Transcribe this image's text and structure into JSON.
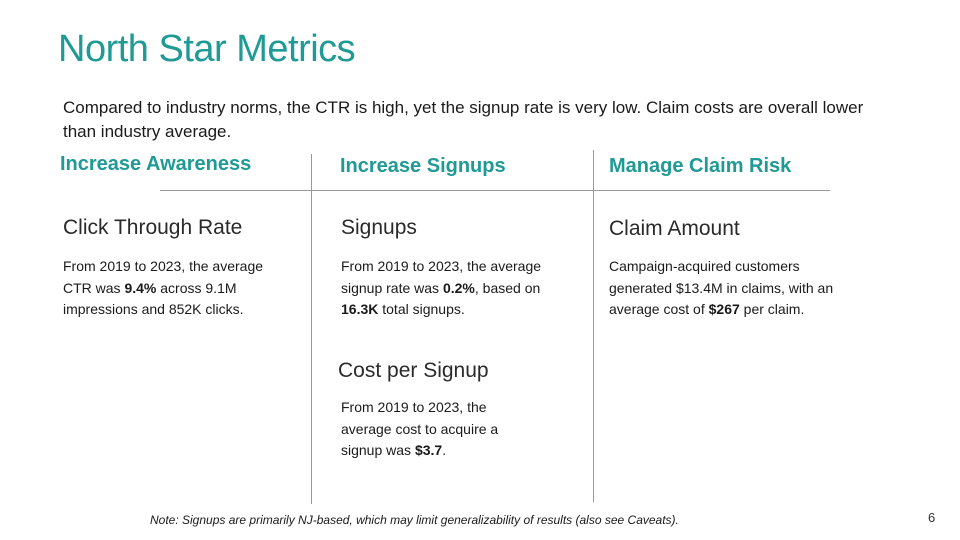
{
  "slide": {
    "title": "North Star Metrics",
    "intro": "Compared to industry norms, the CTR is high, yet the signup rate is very low. Claim costs are overall lower than industry average.",
    "page_number": "6",
    "note": "Note: Signups are primarily NJ-based, which may limit generalizability of results (also see Caveats)."
  },
  "columns": [
    {
      "heading": "Increase Awareness",
      "metrics": [
        {
          "name": "Click Through Rate",
          "desc": {
            "pre": "From 2019 to 2023, the average CTR was ",
            "bold": "9.4%",
            "post": " across 9.1M impressions and 852K clicks."
          }
        }
      ]
    },
    {
      "heading": "Increase Signups",
      "metrics": [
        {
          "name": "Signups",
          "desc": {
            "pre": "From 2019 to 2023, the average signup rate was ",
            "bold": "0.2%",
            "mid": ", based on ",
            "bold2": "16.3K",
            "post": " total signups."
          }
        },
        {
          "name": "Cost per Signup",
          "desc": {
            "pre": "From 2019 to 2023, the average cost to acquire a signup was ",
            "bold": "$3.7",
            "post": "."
          }
        }
      ]
    },
    {
      "heading": "Manage Claim Risk",
      "metrics": [
        {
          "name": "Claim Amount",
          "desc": {
            "pre": "Campaign-acquired customers generated $13.4M in claims, with an average cost of ",
            "bold": "$267",
            "post": " per claim."
          }
        }
      ]
    }
  ]
}
